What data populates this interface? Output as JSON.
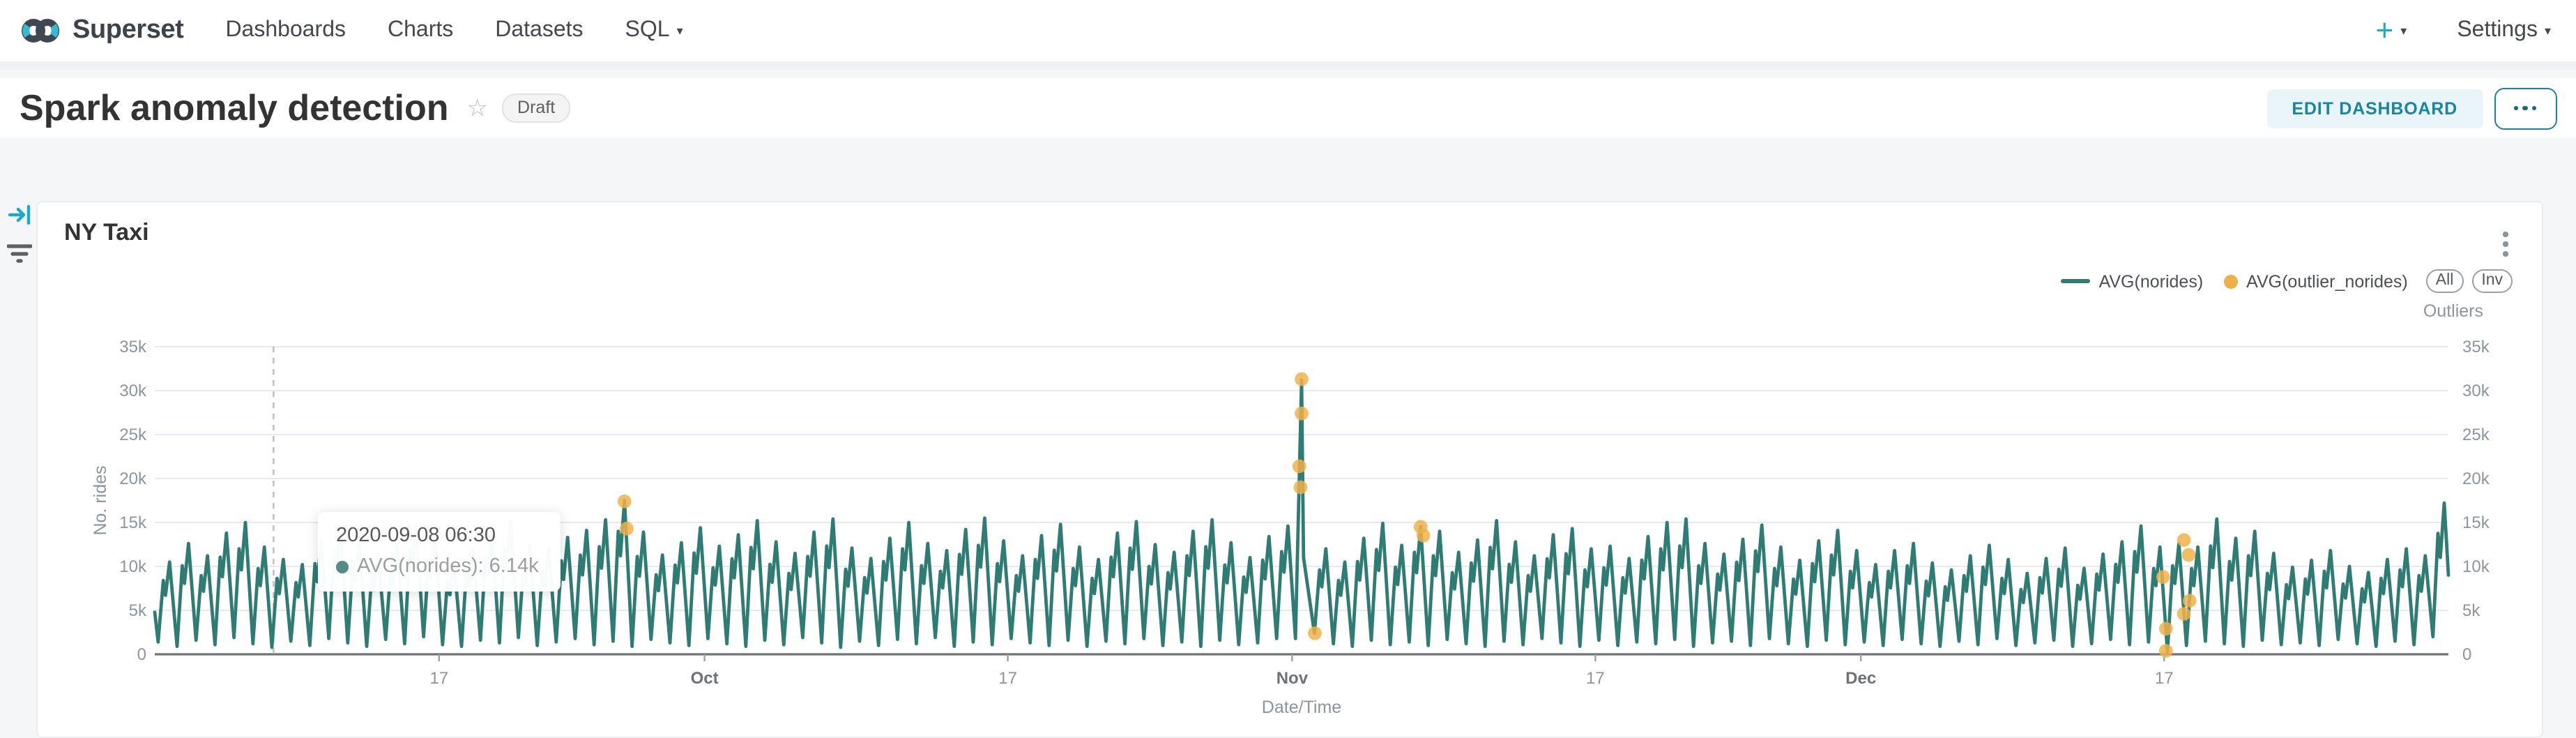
{
  "navbar": {
    "brand": "Superset",
    "items": [
      {
        "label": "Dashboards"
      },
      {
        "label": "Charts"
      },
      {
        "label": "Datasets"
      },
      {
        "label": "SQL"
      }
    ],
    "plus_label": "+",
    "settings_label": "Settings"
  },
  "icons": {
    "caret_down": "▾",
    "star": "☆"
  },
  "header": {
    "title": "Spark anomaly detection",
    "status_badge": "Draft",
    "edit_button": "EDIT DASHBOARD"
  },
  "chart_card": {
    "title": "NY Taxi",
    "legend": [
      {
        "label": "AVG(norides)",
        "type": "line",
        "color": "#2e7c73"
      },
      {
        "label": "AVG(outlier_norides)",
        "type": "dot",
        "color": "#eeb14a"
      }
    ],
    "outlier_buttons": [
      "All",
      "Inv"
    ],
    "outlier_group_label": "Outliers"
  },
  "tooltip": {
    "date": "2020-09-08 06:30",
    "value_text": "AVG(norides): 6.14k",
    "dot_color": "#548b85"
  },
  "chart_data": {
    "type": "line",
    "title": "NY Taxi",
    "xlabel": "Date/Time",
    "ylabel": "No. rides",
    "ylim": [
      0,
      35
    ],
    "unit": "thousands of rides (k)",
    "grid": true,
    "legend_position": "top-right",
    "x_axis": {
      "start_date": "2020-09-02",
      "end_date": "2021-01-01"
    },
    "x_day_count": 121,
    "y_ticks": [
      "0",
      "5k",
      "10k",
      "15k",
      "20k",
      "25k",
      "30k",
      "35k"
    ],
    "y_tick_values": [
      0,
      5,
      10,
      15,
      20,
      25,
      30,
      35
    ],
    "x_ticks": [
      {
        "label": "17",
        "day": 15
      },
      {
        "label": "Oct",
        "day": 29,
        "month": true
      },
      {
        "label": "17",
        "day": 45
      },
      {
        "label": "Nov",
        "day": 60,
        "month": true
      },
      {
        "label": "17",
        "day": 76
      },
      {
        "label": "Dec",
        "day": 90,
        "month": true
      },
      {
        "label": "17",
        "day": 106
      }
    ],
    "crosshair_day": 6.27,
    "series": [
      {
        "name": "AVG(norides)",
        "color": "#2e7c73",
        "start_value": 4.8,
        "end_value": 9.0,
        "daily_peaks": [
          10.5,
          12.6,
          11.2,
          13.8,
          15.0,
          12.2,
          10.8,
          10.2,
          12.9,
          14.6,
          13.1,
          11.4,
          12.3,
          14.9,
          13.4,
          10.6,
          12.1,
          13.9,
          15.1,
          12.4,
          11.9,
          13.3,
          14.1,
          15.3,
          17.5,
          13.9,
          11.3,
          12.7,
          14.4,
          12.3,
          13.6,
          15.2,
          12.8,
          11.5,
          13.9,
          15.4,
          12.1,
          10.9,
          13.2,
          15.0,
          12.6,
          11.8,
          14.2,
          15.5,
          12.9,
          11.2,
          13.5,
          14.8,
          12.2,
          10.8,
          13.8,
          15.1,
          12.5,
          11.6,
          14.0,
          15.3,
          12.7,
          11.0,
          13.4,
          14.6,
          31.2,
          12.0,
          10.5,
          13.2,
          14.9,
          12.4,
          14.5,
          14.0,
          11.6,
          13.0,
          15.2,
          12.8,
          11.2,
          13.6,
          14.3,
          12.0,
          12.3,
          10.9,
          13.4,
          15.0,
          15.4,
          12.6,
          11.4,
          13.1,
          14.7,
          12.2,
          10.7,
          12.9,
          14.1,
          11.8,
          10.2,
          11.8,
          12.6,
          10.4,
          9.6,
          11.2,
          12.4,
          10.8,
          9.2,
          10.9,
          12.1,
          9.8,
          11.4,
          12.8,
          14.6,
          12.2,
          12.6,
          12.2,
          15.4,
          13.2,
          14.0,
          11.5,
          9.9,
          10.7,
          11.8,
          10.0,
          9.3,
          10.8,
          12.0,
          11.2,
          17.2
        ],
        "daily_troughs": [
          1.4,
          0.9,
          1.6,
          1.1,
          1.9,
          1.2,
          0.8,
          1.5,
          1.0,
          1.8,
          1.3,
          0.9,
          1.7,
          1.2,
          2.0,
          1.1,
          0.9,
          1.6,
          1.3,
          1.9,
          1.0,
          1.4,
          1.8,
          1.1,
          1.5,
          0.9,
          1.7,
          1.3,
          1.0,
          1.8,
          1.2,
          0.9,
          1.6,
          1.1,
          1.9,
          1.3,
          0.8,
          1.5,
          1.0,
          1.7,
          1.2,
          1.9,
          0.9,
          1.4,
          1.1,
          1.8,
          1.3,
          1.0,
          1.6,
          0.9,
          1.5,
          1.2,
          1.8,
          1.0,
          1.4,
          0.9,
          1.6,
          1.1,
          1.3,
          1.8,
          1.8,
          2.4,
          1.2,
          0.9,
          1.6,
          1.1,
          1.4,
          1.0,
          1.7,
          1.2,
          0.9,
          1.5,
          1.1,
          1.8,
          1.3,
          0.9,
          1.6,
          1.0,
          1.4,
          1.2,
          1.7,
          0.9,
          1.3,
          1.5,
          1.0,
          1.8,
          1.2,
          0.9,
          1.6,
          1.1,
          1.4,
          1.0,
          1.7,
          1.2,
          0.9,
          1.5,
          1.1,
          1.8,
          1.0,
          1.3,
          1.6,
          0.9,
          1.2,
          1.7,
          1.1,
          1.4,
          0.3,
          1.0,
          1.5,
          1.2,
          0.9,
          1.6,
          1.1,
          1.3,
          1.0,
          1.7,
          1.2,
          0.9,
          1.5,
          1.1,
          2.0
        ]
      },
      {
        "name": "AVG(outlier_norides)",
        "color": "#eeb14a",
        "points": [
          [
            24.78,
            17.4
          ],
          [
            24.9,
            14.3
          ],
          [
            60.38,
            21.4
          ],
          [
            60.44,
            19.0
          ],
          [
            60.5,
            31.3
          ],
          [
            60.5,
            27.4
          ],
          [
            61.2,
            2.4
          ],
          [
            66.78,
            14.5
          ],
          [
            66.92,
            13.5
          ],
          [
            105.95,
            8.8
          ],
          [
            106.1,
            2.9
          ],
          [
            106.1,
            0.4
          ],
          [
            107.05,
            13.0
          ],
          [
            107.05,
            4.6
          ],
          [
            107.3,
            11.3
          ],
          [
            107.35,
            6.1
          ]
        ]
      }
    ]
  }
}
